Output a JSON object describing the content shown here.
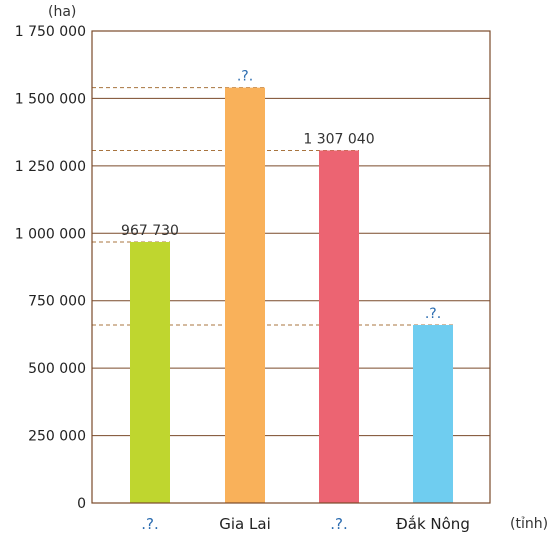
{
  "chart_data": {
    "type": "bar",
    "y_unit": "(ha)",
    "x_unit": "(tỉnh)",
    "categories": [
      ".?.",
      "Gia Lai",
      ".?.",
      "Đắk Nông"
    ],
    "values": [
      967730,
      1540000,
      1307040,
      660000
    ],
    "data_labels": [
      "967 730",
      ".?.",
      "1 307 040",
      ".?."
    ],
    "colors": [
      "#bfd62f",
      "#f9b15a",
      "#ec6472",
      "#6fcdf0"
    ],
    "ylim": [
      0,
      1750000
    ],
    "yticks": [
      0,
      250000,
      500000,
      750000,
      1000000,
      1250000,
      1500000,
      1750000
    ],
    "ytick_labels": [
      "0",
      "250 000",
      "500 000",
      "750 000",
      "1 000 000",
      "1 250 000",
      "1 500 000",
      "1 750 000"
    ],
    "guide_lines": true,
    "grid": true
  }
}
